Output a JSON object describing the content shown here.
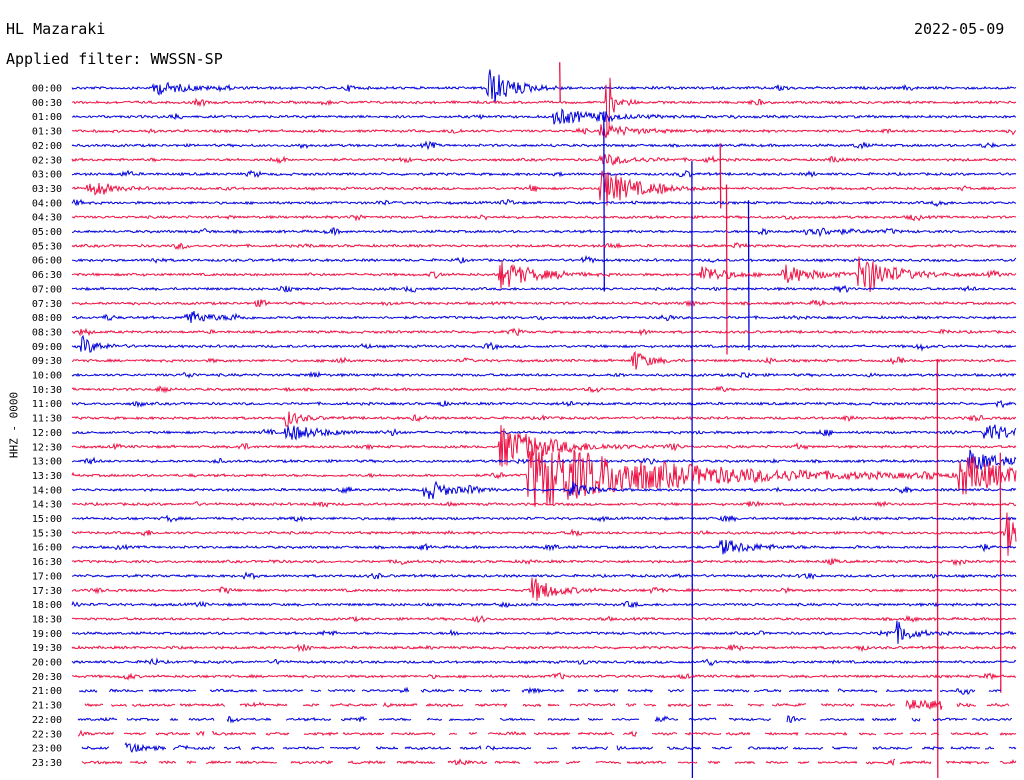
{
  "header": {
    "station": "HL Mazaraki",
    "date": "2022-05-09",
    "filter": "Applied filter: WWSSN-SP"
  },
  "chart_data": {
    "type": "line",
    "title": "HL Mazaraki",
    "ylabel": "HHZ - 0000",
    "x_unit": "minutes within 30-minute row",
    "x_range": [
      0,
      30
    ],
    "colors": {
      "blue": "#0000dd",
      "red": "#ee1144"
    },
    "row_labels": [
      "00:00",
      "00:30",
      "01:00",
      "01:30",
      "02:00",
      "02:30",
      "03:00",
      "03:30",
      "04:00",
      "04:30",
      "05:00",
      "05:30",
      "06:00",
      "06:30",
      "07:00",
      "07:30",
      "08:00",
      "08:30",
      "09:00",
      "09:30",
      "10:00",
      "10:30",
      "11:00",
      "11:30",
      "12:00",
      "12:30",
      "13:00",
      "13:30",
      "14:00",
      "14:30",
      "15:00",
      "15:30",
      "16:00",
      "16:30",
      "17:00",
      "17:30",
      "18:00",
      "18:30",
      "19:00",
      "19:30",
      "20:00",
      "20:30",
      "21:00",
      "21:30",
      "22:00",
      "22:30",
      "23:00",
      "23:30"
    ],
    "series": [
      {
        "color": "blue",
        "label": "even rows (hh:00)"
      },
      {
        "color": "red",
        "label": "odd rows (hh:30)"
      }
    ],
    "events": [
      {
        "row": 0,
        "t": 13.2,
        "amp": 22,
        "dur": 1.5
      },
      {
        "row": 0,
        "t": 2.6,
        "amp": 7,
        "dur": 2
      },
      {
        "row": 1,
        "t": 17.0,
        "amp": 50,
        "dur": 0.3
      },
      {
        "row": 2,
        "t": 15.3,
        "amp": 8,
        "dur": 3
      },
      {
        "row": 3,
        "t": 16.8,
        "amp": 7,
        "dur": 2
      },
      {
        "row": 5,
        "t": 16.8,
        "amp": 6,
        "dur": 2
      },
      {
        "row": 7,
        "t": 16.8,
        "amp": 22,
        "dur": 2
      },
      {
        "row": 7,
        "t": 0.5,
        "amp": 6,
        "dur": 1.5
      },
      {
        "row": 10,
        "t": 23.3,
        "amp": 6,
        "dur": 2
      },
      {
        "row": 13,
        "t": 13.6,
        "amp": 16,
        "dur": 2
      },
      {
        "row": 13,
        "t": 22.6,
        "amp": 10,
        "dur": 2
      },
      {
        "row": 13,
        "t": 25.0,
        "amp": 22,
        "dur": 2
      },
      {
        "row": 13,
        "t": 20.0,
        "amp": 10,
        "dur": 1.5
      },
      {
        "row": 16,
        "t": 3.6,
        "amp": 8,
        "dur": 1.5
      },
      {
        "row": 18,
        "t": 0.3,
        "amp": 10,
        "dur": 1
      },
      {
        "row": 19,
        "t": 17.8,
        "amp": 12,
        "dur": 1
      },
      {
        "row": 23,
        "t": 6.8,
        "amp": 8,
        "dur": 1
      },
      {
        "row": 24,
        "t": 6.8,
        "amp": 9,
        "dur": 2
      },
      {
        "row": 24,
        "t": 29.0,
        "amp": 10,
        "dur": 2
      },
      {
        "row": 25,
        "t": 13.6,
        "amp": 22,
        "dur": 3
      },
      {
        "row": 26,
        "t": 28.5,
        "amp": 12,
        "dur": 2
      },
      {
        "row": 27,
        "t": 14.5,
        "amp": 35,
        "dur": 9
      },
      {
        "row": 27,
        "t": 28.2,
        "amp": 22,
        "dur": 3
      },
      {
        "row": 28,
        "t": 11.2,
        "amp": 12,
        "dur": 1.5
      },
      {
        "row": 28,
        "t": 15.8,
        "amp": 10,
        "dur": 1
      },
      {
        "row": 31,
        "t": 29.7,
        "amp": 22,
        "dur": 2
      },
      {
        "row": 32,
        "t": 20.6,
        "amp": 8,
        "dur": 2
      },
      {
        "row": 35,
        "t": 14.6,
        "amp": 14,
        "dur": 1.5
      },
      {
        "row": 38,
        "t": 26.2,
        "amp": 12,
        "dur": 1
      },
      {
        "row": 43,
        "t": 26.5,
        "amp": 6,
        "dur": 2
      },
      {
        "row": 46,
        "t": 1.7,
        "amp": 6,
        "dur": 1
      }
    ],
    "spikes": [
      {
        "row": 1,
        "t": 15.5,
        "up": 40,
        "down": 0
      },
      {
        "row": 7,
        "t": 20.6,
        "up": 45,
        "down": 20
      },
      {
        "row": 10,
        "t": 16.9,
        "up": 120,
        "down": 60
      },
      {
        "row": 12,
        "t": 21.5,
        "up": 60,
        "down": 90
      },
      {
        "row": 13,
        "t": 20.8,
        "up": 90,
        "down": 80
      },
      {
        "row": 21,
        "t": 27.5,
        "up": 30,
        "down": 440
      },
      {
        "row": 26,
        "t": 19.7,
        "up": 300,
        "down": 340
      },
      {
        "row": 31,
        "t": 29.5,
        "up": 80,
        "down": 160
      }
    ],
    "gap_rows": [
      42,
      43,
      44,
      45,
      46,
      47
    ]
  }
}
